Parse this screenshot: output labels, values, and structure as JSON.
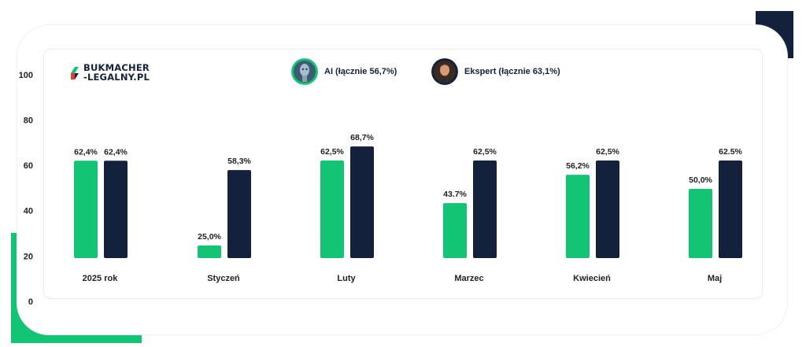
{
  "brand": {
    "line1": "BUKMACHER",
    "line2": "-LEGALNY.PL"
  },
  "colors": {
    "ai": "#12c473",
    "expert": "#13213d"
  },
  "legend": [
    {
      "name": "AI (łącznie 56,7%)",
      "icon": "robot-avatar-icon"
    },
    {
      "name": "Ekspert (łącznie 63,1%)",
      "icon": "expert-portrait-icon"
    }
  ],
  "chart_data": {
    "type": "bar",
    "ylim": [
      0,
      100
    ],
    "yticks": [
      "0",
      "20",
      "40",
      "60",
      "80",
      "100"
    ],
    "yticks_values": [
      0,
      20,
      40,
      60,
      80,
      100
    ],
    "categories": [
      "2025 rok",
      "Styczeń",
      "Luty",
      "Marzec",
      "Kwiecień",
      "Maj"
    ],
    "series": [
      {
        "name": "AI (łącznie 56,7%)",
        "values": [
          62.4,
          25.0,
          62.5,
          43.7,
          56.2,
          50.0
        ],
        "labels": [
          "62,4%",
          "25,0%",
          "62,5%",
          "43.7%",
          "56,2%",
          "50,0%"
        ]
      },
      {
        "name": "Ekspert (łącznie 63,1%)",
        "values": [
          62.4,
          58.3,
          68.7,
          62.5,
          62.5,
          62.5
        ],
        "labels": [
          "62,4%",
          "58,3%",
          "68,7%",
          "62,5%",
          "62,5%",
          "62.5%"
        ]
      }
    ],
    "grid": false,
    "legend_position": "top-center"
  }
}
